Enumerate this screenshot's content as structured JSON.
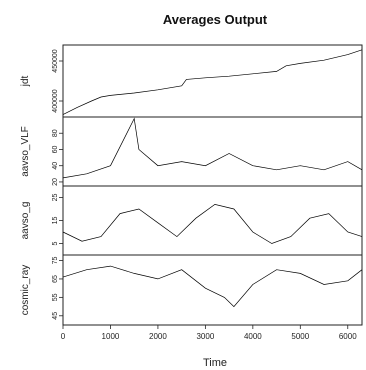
{
  "chart_data": {
    "type": "line",
    "title": "Averages Output",
    "xlabel": "Time",
    "xlim": [
      0,
      6300
    ],
    "x_ticks": [
      0,
      1000,
      2000,
      3000,
      4000,
      5000,
      6000
    ],
    "x_tick_labels": [
      "0",
      "1000",
      "2000",
      "3000",
      "4000",
      "5000",
      "6000"
    ],
    "panels": [
      {
        "ylabel": "jdt",
        "y_ticks": [
          400000,
          450000
        ],
        "y_tick_labels": [
          "400000",
          "450000"
        ],
        "ylim": [
          380000,
          470000
        ],
        "x": [
          0,
          300,
          600,
          800,
          1000,
          1500,
          2000,
          2500,
          2600,
          3000,
          3500,
          4000,
          4500,
          4700,
          5000,
          5500,
          6000,
          6300
        ],
        "values": [
          383000,
          392000,
          400000,
          405000,
          407000,
          410000,
          414000,
          419000,
          427000,
          429000,
          431000,
          434000,
          437000,
          444000,
          447000,
          451000,
          458000,
          464000
        ]
      },
      {
        "ylabel": "aavso_VLF",
        "y_ticks": [
          20,
          40,
          60,
          80
        ],
        "y_tick_labels": [
          "20",
          "40",
          "60",
          "80"
        ],
        "ylim": [
          15,
          100
        ],
        "x": [
          0,
          500,
          1000,
          1500,
          1600,
          2000,
          2500,
          3000,
          3500,
          4000,
          4500,
          5000,
          5500,
          6000,
          6300
        ],
        "values": [
          25,
          30,
          40,
          98,
          60,
          40,
          45,
          40,
          55,
          40,
          35,
          40,
          35,
          45,
          35
        ]
      },
      {
        "ylabel": "aavso_g",
        "y_ticks": [
          5,
          15,
          25
        ],
        "y_tick_labels": [
          "5",
          "15",
          "25"
        ],
        "ylim": [
          0,
          30
        ],
        "x": [
          0,
          400,
          800,
          1200,
          1600,
          2000,
          2400,
          2800,
          3200,
          3600,
          4000,
          4400,
          4800,
          5200,
          5600,
          6000,
          6300
        ],
        "values": [
          10,
          6,
          8,
          18,
          20,
          14,
          8,
          16,
          22,
          20,
          10,
          5,
          8,
          16,
          18,
          10,
          8
        ]
      },
      {
        "ylabel": "cosmic_ray",
        "y_ticks": [
          45,
          55,
          65,
          75
        ],
        "y_tick_labels": [
          "45",
          "55",
          "65",
          "75"
        ],
        "ylim": [
          40,
          78
        ],
        "x": [
          0,
          500,
          1000,
          1500,
          2000,
          2500,
          3000,
          3400,
          3600,
          4000,
          4500,
          5000,
          5500,
          6000,
          6300
        ],
        "values": [
          66,
          70,
          72,
          68,
          65,
          70,
          60,
          55,
          50,
          62,
          70,
          68,
          62,
          64,
          70
        ]
      }
    ]
  }
}
